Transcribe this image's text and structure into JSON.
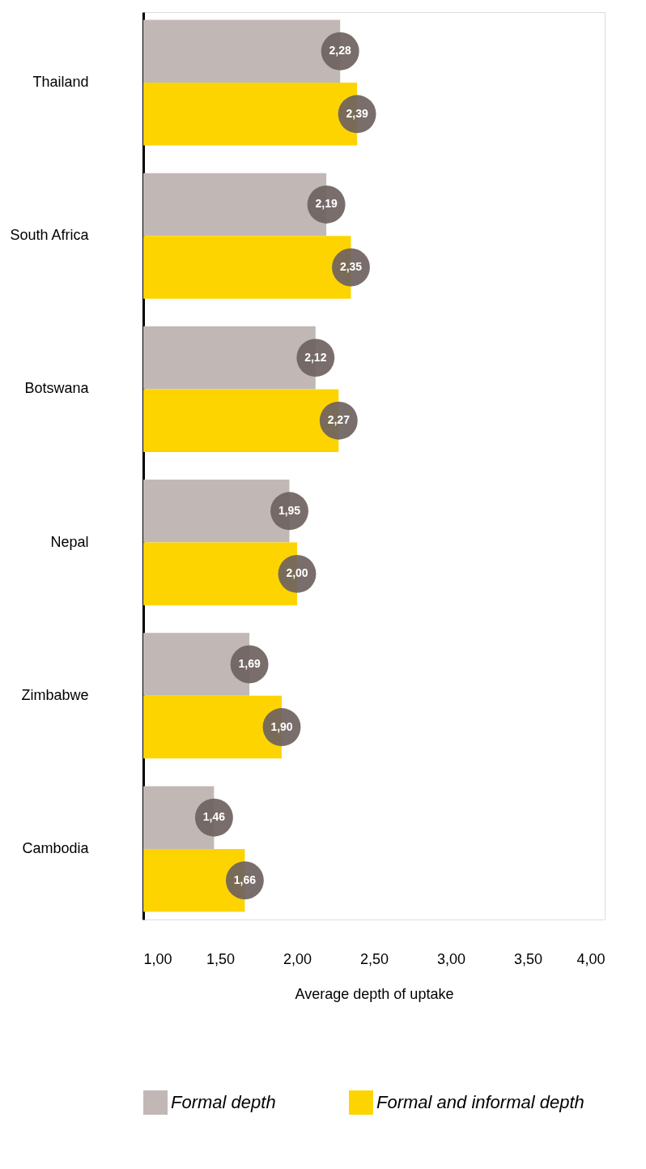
{
  "chart_data": {
    "type": "bar",
    "orientation": "horizontal",
    "xlabel": "Average depth of uptake",
    "categories": [
      "Thailand",
      "South Africa",
      "Botswana",
      "Nepal",
      "Zimbabwe",
      "Cambodia"
    ],
    "series": [
      {
        "name": "Formal depth",
        "color": "#c1b8b6",
        "values": [
          2.28,
          2.19,
          2.12,
          1.95,
          1.69,
          1.46
        ],
        "value_labels": [
          "2,28",
          "2,19",
          "2,12",
          "1,95",
          "1,69",
          "1,46"
        ]
      },
      {
        "name": "Formal and informal depth",
        "color": "#fdd400",
        "values": [
          2.39,
          2.35,
          2.27,
          2.0,
          1.9,
          1.66
        ],
        "value_labels": [
          "2,39",
          "2,35",
          "2,27",
          "2,00",
          "1,90",
          "1,66"
        ]
      }
    ],
    "xlim": [
      1,
      4
    ],
    "xticks": [
      {
        "value": 1,
        "label": "1,00"
      },
      {
        "value": 1.5,
        "label": "1,50"
      },
      {
        "value": 2,
        "label": "2,00"
      },
      {
        "value": 2.5,
        "label": "2,50"
      },
      {
        "value": 3,
        "label": "3,00"
      },
      {
        "value": 3.5,
        "label": "3,50"
      },
      {
        "value": 4,
        "label": "4,00"
      }
    ],
    "grid": false,
    "legend": "bottom"
  }
}
